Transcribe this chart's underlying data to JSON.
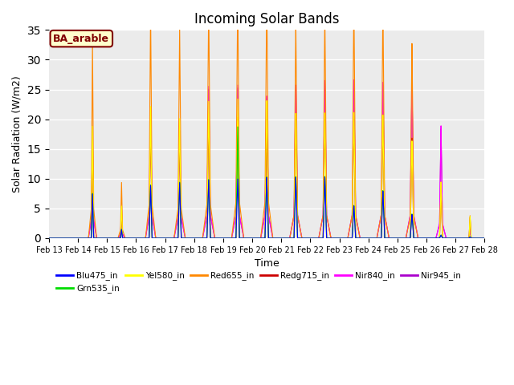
{
  "title": "Incoming Solar Bands",
  "xlabel": "Time",
  "ylabel": "Solar Radiation (W/m2)",
  "legend_label": "BA_arable",
  "ylim": [
    0,
    35
  ],
  "date_labels": [
    "Feb 13",
    "Feb 14",
    "Feb 15",
    "Feb 16",
    "Feb 17",
    "Feb 18",
    "Feb 19",
    "Feb 20",
    "Feb 21",
    "Feb 22",
    "Feb 23",
    "Feb 24",
    "Feb 25",
    "Feb 26",
    "Feb 27",
    "Feb 28"
  ],
  "series_colors": {
    "Blu475_in": "#0000ff",
    "Grn535_in": "#00dd00",
    "Yel580_in": "#ffff00",
    "Red655_in": "#ff8800",
    "Redg715_in": "#cc0000",
    "Nir840_in": "#ff00ff",
    "Nir945_in": "#aa00cc"
  },
  "plot_bg_color": "#ebebeb",
  "annotation_box_color": "#ffffcc",
  "annotation_text_color": "#800000",
  "annotation_border_color": "#800000",
  "day_peaks": {
    "Blu475_in": [
      0.0,
      7.5,
      1.5,
      9.0,
      9.5,
      10.0,
      10.2,
      10.5,
      10.5,
      10.5,
      5.5,
      8.0,
      4.0,
      0.5,
      0.2
    ],
    "Grn535_in": [
      0.0,
      7.6,
      1.5,
      9.1,
      9.6,
      10.1,
      19.2,
      10.6,
      10.6,
      10.6,
      5.6,
      8.1,
      4.1,
      0.55,
      0.25
    ],
    "Yel580_in": [
      0.0,
      19.0,
      5.5,
      22.5,
      20.5,
      23.5,
      24.0,
      23.8,
      21.5,
      21.5,
      21.5,
      21.0,
      16.5,
      9.5,
      3.7
    ],
    "Red655_in": [
      0.0,
      26.5,
      7.5,
      31.2,
      29.0,
      32.5,
      32.8,
      33.5,
      31.5,
      33.0,
      35.0,
      34.5,
      28.0,
      9.5,
      3.8
    ],
    "Redg715_in": [
      0.0,
      19.0,
      5.5,
      20.0,
      18.5,
      20.5,
      20.8,
      19.0,
      21.5,
      20.5,
      21.0,
      21.0,
      17.0,
      9.0,
      3.5
    ],
    "Nir840_in": [
      0.0,
      12.5,
      3.0,
      16.5,
      14.0,
      20.5,
      20.8,
      19.0,
      20.8,
      21.5,
      21.5,
      21.0,
      21.0,
      15.5,
      1.5
    ],
    "Nir945_in": [
      0.0,
      12.2,
      2.8,
      16.0,
      13.5,
      20.2,
      20.5,
      18.8,
      20.5,
      21.2,
      21.2,
      20.8,
      20.8,
      15.2,
      1.4
    ]
  },
  "day_widths": [
    0.05,
    0.04,
    0.035,
    0.05,
    0.055,
    0.06,
    0.06,
    0.06,
    0.06,
    0.06,
    0.06,
    0.06,
    0.06,
    0.05,
    0.035
  ],
  "shoulder_peaks": {
    "Blu475_in": [
      0.0,
      0.0,
      0.0,
      0.0,
      0.0,
      0.0,
      0.0,
      0.0,
      0.0,
      0.0,
      0.0,
      0.0,
      0.0,
      0.0,
      0.0
    ],
    "Grn535_in": [
      0.0,
      0.0,
      0.0,
      0.0,
      0.0,
      0.0,
      0.0,
      0.0,
      0.0,
      0.0,
      0.0,
      0.0,
      0.0,
      0.0,
      0.0
    ],
    "Yel580_in": [
      0.0,
      0.0,
      0.0,
      0.0,
      0.0,
      0.0,
      0.0,
      0.0,
      0.0,
      0.0,
      0.0,
      0.0,
      0.0,
      0.0,
      0.0
    ],
    "Red655_in": [
      0.0,
      7.0,
      2.0,
      8.0,
      7.0,
      8.0,
      8.5,
      8.5,
      5.5,
      5.5,
      5.5,
      5.5,
      5.0,
      0.0,
      0.0
    ],
    "Redg715_in": [
      0.0,
      0.0,
      0.0,
      0.0,
      0.0,
      0.0,
      0.0,
      0.0,
      0.0,
      0.0,
      0.0,
      0.0,
      0.0,
      0.0,
      0.0
    ],
    "Nir840_in": [
      0.0,
      4.5,
      1.0,
      5.5,
      5.0,
      5.5,
      5.5,
      5.5,
      5.5,
      5.5,
      5.5,
      5.5,
      5.5,
      3.5,
      0.0
    ],
    "Nir945_in": [
      0.0,
      4.3,
      0.9,
      5.3,
      4.8,
      5.3,
      5.3,
      5.3,
      5.3,
      5.3,
      5.3,
      5.3,
      5.3,
      3.3,
      0.0
    ]
  }
}
